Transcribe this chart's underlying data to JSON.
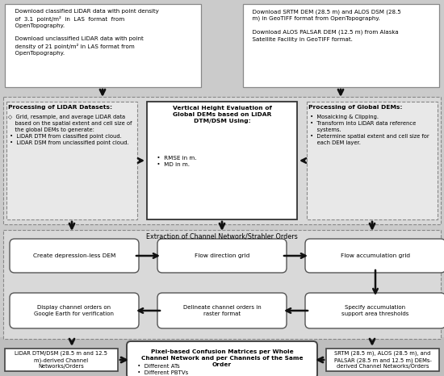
{
  "bg_color": "#cbcbcb",
  "white": "#ffffff",
  "mid_gray": "#d8d8d8",
  "border_dark": "#444444",
  "border_med": "#777777",
  "arrow_color": "#111111",
  "box1_text": "  Download classified LiDAR data with point density\n  of  3.1  point/m²  in  LAS  format  from\n  OpenTopography.\n\n  Download unclassified LiDAR data with point\n  density of 21 point/m² in LAS format from\n  OpenTopography.",
  "box2_text": "  Download SRTM DEM (28.5 m) and ALOS DSM (28.5\n  m) in GeoTIFF format from OpenTopography.\n\n  Download ALOS PALSAR DEM (12.5 m) from Alaska\n  Satellite Facility in GeoTIFF format.",
  "lidar_proc_title": "Processing of LiDAR Datasets:",
  "lidar_proc_body": "◇  Grid, resample, and average LiDAR data\n    based on the spatial extent and cell size of\n    the global DEMs to generate:\n •  LiDAR DTM from classified point cloud.\n •  LiDAR DSM from unclassified point cloud.",
  "vert_eval_title": "Vertical Height Evaluation of\nGlobal DEMs based on LiDAR\nDTM/DSM Using:",
  "vert_eval_body": " •  RMSE in m.\n •  MD in m.",
  "global_proc_title": "Processing of Global DEMs:",
  "global_proc_body": " •  Mosaicking & Clipping.\n •  Transform into LiDAR data reference\n     systems.\n •  Determine spatial extent and cell size for\n     each DEM layer.",
  "channel_section_title": "Extraction of Channel Network/Strahler Orders",
  "oval1": "Create depression-less DEM",
  "oval2": "Flow direction grid",
  "oval3": "Flow accumulation grid",
  "oval4": "Display channel orders on\nGoogle Earth for verification",
  "oval5": "Delineate channel orders in\nraster format",
  "oval6": "Specify accumulation\nsupport area thresholds",
  "bottom_left_title": "LiDAR DTM/DSM",
  "bottom_left_text": "LiDAR DTM/DSM (28.5 m and 12.5\nm)-derived Channel\nNetworks/Orders",
  "bottom_center_title": "Pixel-based Confusion Matrices per Whole\nChannel Network and per Channels of the Same\nOrder",
  "bottom_center_body": " •  Different ATs\n •  Different PBTVs\n •  Evaluation performance measures\n     (i.e., PA, UA, F, and KI)",
  "bottom_right_text": "SRTM (28.5 m), ALOS (28.5 m), and\nPALSAR (28.5 m and 12.5 m) DEMs-\nderived Channel Networks/Orders"
}
